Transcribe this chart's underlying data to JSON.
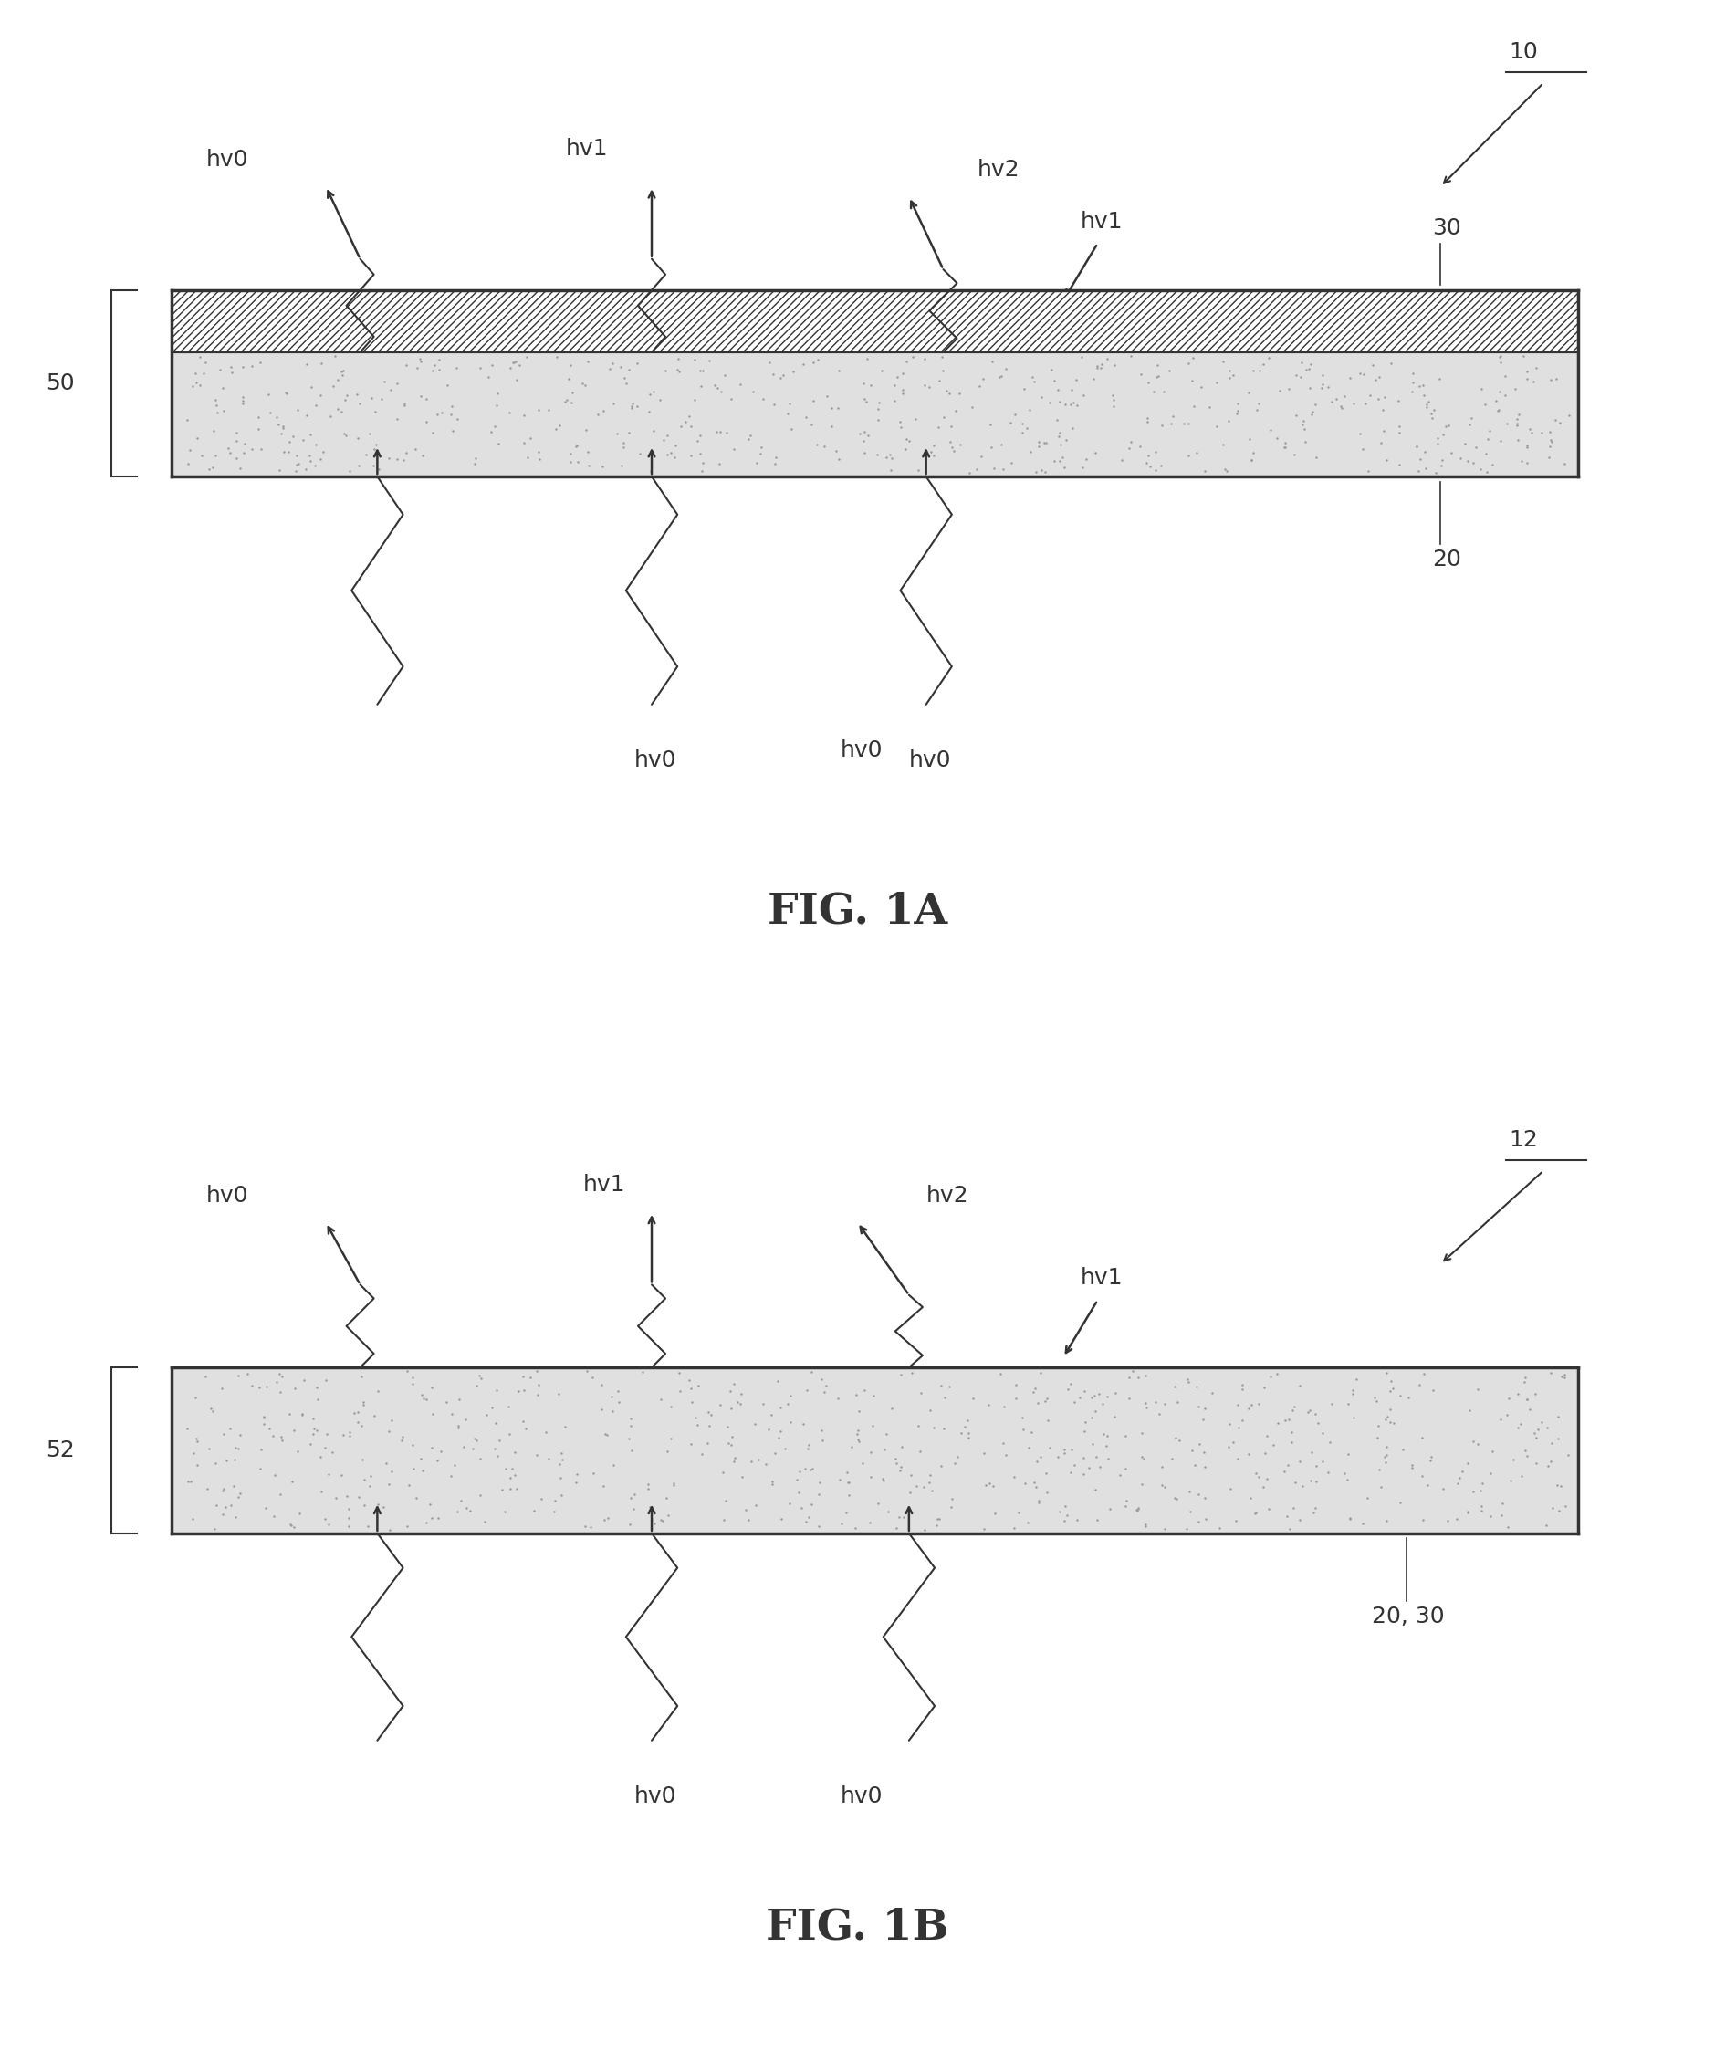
{
  "fig_width": 18.79,
  "fig_height": 22.7,
  "bg_color": "#ffffff",
  "fig1a_title": "FIG. 1A",
  "fig1b_title": "FIG. 1B",
  "label_10": "10",
  "label_12": "12",
  "label_20": "20",
  "label_30": "30",
  "label_50": "50",
  "label_52": "52",
  "label_2030": "20, 30",
  "border_color": "#333333",
  "text_color": "#333333",
  "hatch_fill": "#ffffff",
  "dot_fill": "#e0e0e0",
  "font_size_label": 18,
  "font_size_ref": 18,
  "font_size_caption": 34
}
